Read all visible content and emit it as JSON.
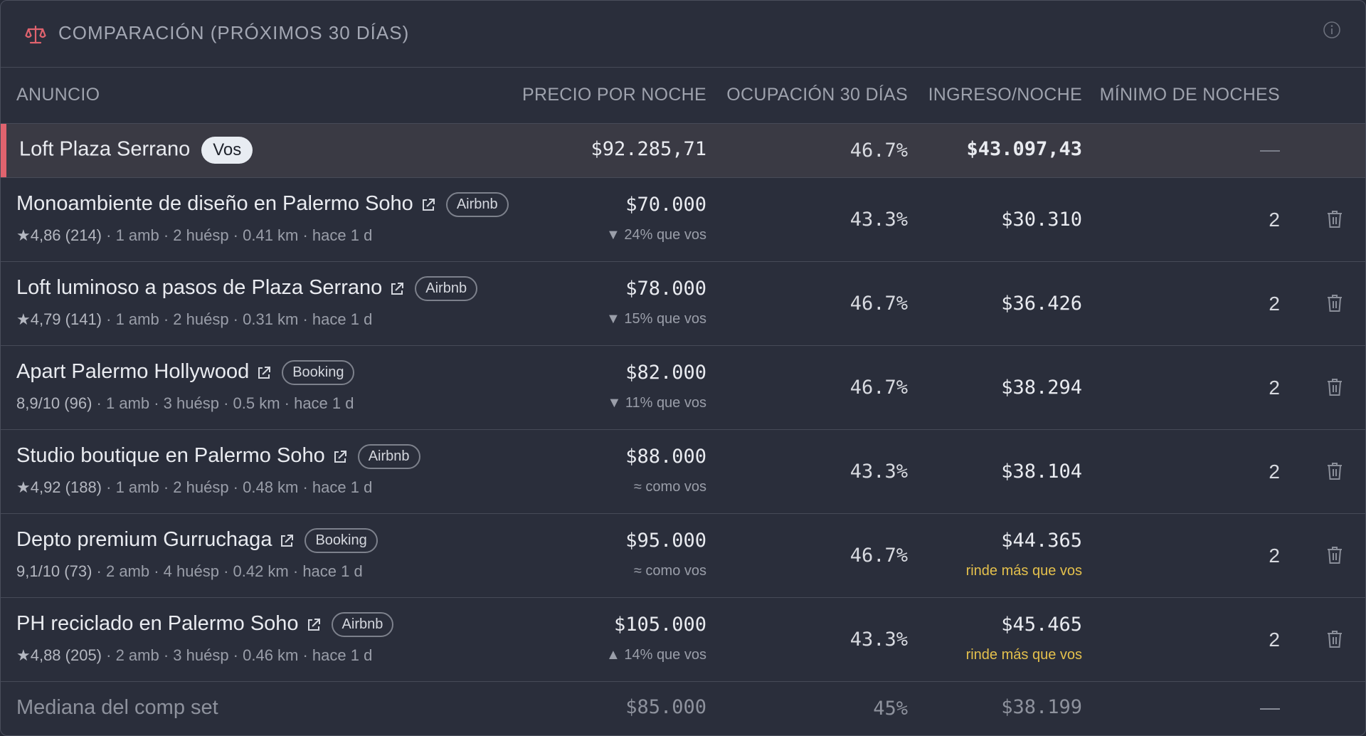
{
  "header": {
    "title": "COMPARACIÓN (PRÓXIMOS 30 DÍAS)",
    "icon": "scale-icon",
    "info_icon": "info-icon",
    "accent_color": "#e0636e"
  },
  "columns": {
    "listing": "ANUNCIO",
    "price": "PRECIO POR NOCHE",
    "occupancy": "OCUPACIÓN 30 DÍAS",
    "income": "INGRESO/NOCHE",
    "min_nights": "MÍNIMO DE NOCHES"
  },
  "own": {
    "name": "Loft Plaza Serrano",
    "badge": "Vos",
    "price": "$92.285,71",
    "occupancy": "46.7%",
    "income": "$43.097,43",
    "min_nights": "—"
  },
  "rows": [
    {
      "name": "Monoambiente de diseño en Palermo Soho",
      "platform": "Airbnb",
      "rating": "★4,86 (214)",
      "details": "· 1 amb · 2 huésp · 0.41 km  ·  hace 1 d",
      "price": "$70.000",
      "price_note": "▼ 24% que vos",
      "occupancy": "43.3%",
      "income": "$30.310",
      "income_note": "",
      "min_nights": "2"
    },
    {
      "name": "Loft luminoso a pasos de Plaza Serrano",
      "platform": "Airbnb",
      "rating": "★4,79 (141)",
      "details": "· 1 amb · 2 huésp · 0.31 km  ·  hace 1 d",
      "price": "$78.000",
      "price_note": "▼ 15% que vos",
      "occupancy": "46.7%",
      "income": "$36.426",
      "income_note": "",
      "min_nights": "2"
    },
    {
      "name": "Apart Palermo Hollywood",
      "platform": "Booking",
      "rating": "8,9/10 (96)",
      "details": "· 1 amb · 3 huésp · 0.5 km  ·  hace 1 d",
      "price": "$82.000",
      "price_note": "▼ 11% que vos",
      "occupancy": "46.7%",
      "income": "$38.294",
      "income_note": "",
      "min_nights": "2"
    },
    {
      "name": "Studio boutique en Palermo Soho",
      "platform": "Airbnb",
      "rating": "★4,92 (188)",
      "details": "· 1 amb · 2 huésp · 0.48 km  ·  hace 1 d",
      "price": "$88.000",
      "price_note": "≈ como vos",
      "occupancy": "43.3%",
      "income": "$38.104",
      "income_note": "",
      "min_nights": "2"
    },
    {
      "name": "Depto premium Gurruchaga",
      "platform": "Booking",
      "rating": "9,1/10 (73)",
      "details": "· 2 amb · 4 huésp · 0.42 km  ·  hace 1 d",
      "price": "$95.000",
      "price_note": "≈ como vos",
      "occupancy": "46.7%",
      "income": "$44.365",
      "income_note": "rinde más que vos",
      "min_nights": "2"
    },
    {
      "name": "PH reciclado en Palermo Soho",
      "platform": "Airbnb",
      "rating": "★4,88 (205)",
      "details": "· 2 amb · 3 huésp · 0.46 km  ·  hace 1 d",
      "price": "$105.000",
      "price_note": "▲ 14% que vos",
      "occupancy": "43.3%",
      "income": "$45.465",
      "income_note": "rinde más que vos",
      "min_nights": "2"
    }
  ],
  "median": {
    "label": "Mediana del comp set",
    "price": "$85.000",
    "occupancy": "45%",
    "income": "$38.199",
    "min_nights": "—"
  }
}
